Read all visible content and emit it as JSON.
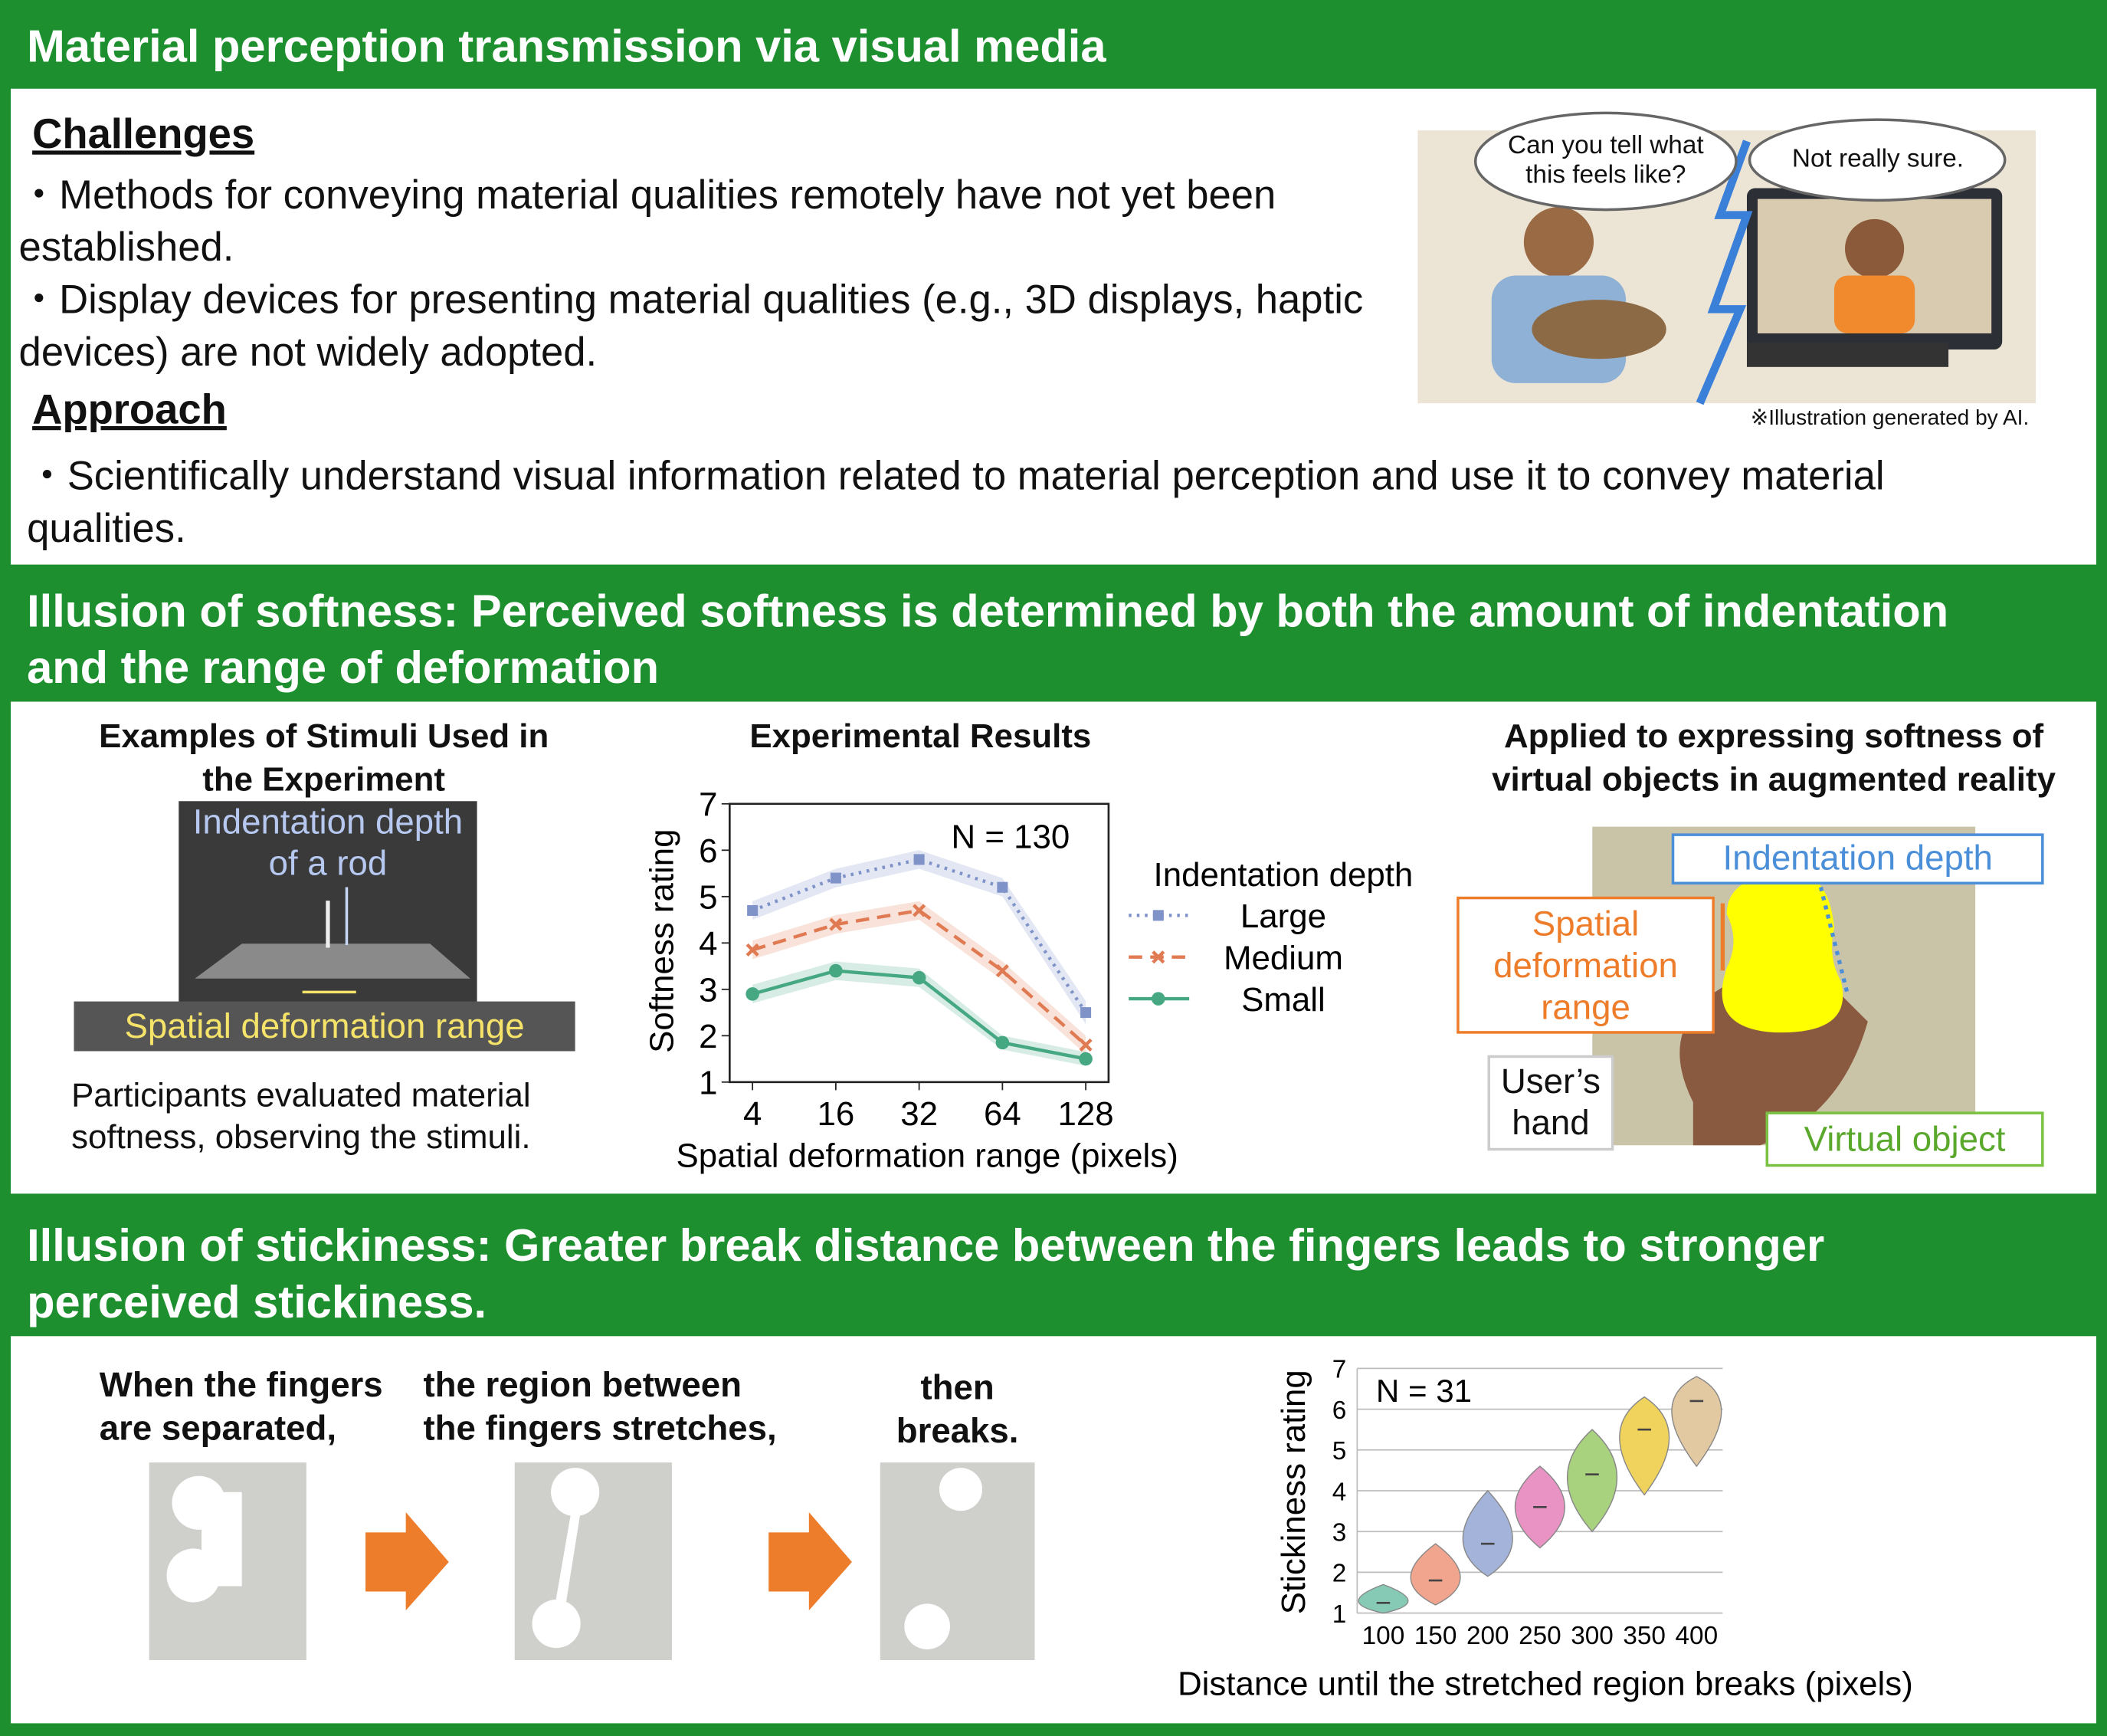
{
  "header": {
    "title": "Material perception transmission via visual media"
  },
  "challenges": {
    "heading": "Challenges",
    "items": [
      "・Methods for conveying material qualities remotely have not yet been established.",
      "・Display devices for presenting material qualities (e.g., 3D displays, haptic devices) are not widely adopted."
    ]
  },
  "approach": {
    "heading": "Approach",
    "items": [
      "・Scientifically understand visual information related to material perception and use it to convey material qualities."
    ]
  },
  "illustration": {
    "speech": [
      "Can you tell what this feels like?",
      "Not really sure."
    ],
    "caption": "※Illustration generated by AI."
  },
  "softness": {
    "title": "Illusion of softness: Perceived softness is determined by both the amount of indentation and the range of deformation",
    "stimuli": {
      "title": "Examples of Stimuli Used in the Experiment",
      "rod_label": "Indentation depth of a rod",
      "range_label": "Spatial deformation range",
      "caption": "Participants evaluated material softness, observing the stimuli."
    },
    "ar": {
      "title": "Applied to expressing softness of virtual objects in augmented reality",
      "labels": [
        "Indentation depth",
        "Spatial deformation range",
        "User’s hand",
        "Virtual object"
      ]
    }
  },
  "stickiness": {
    "title": "Illusion of stickiness: Greater break distance between the fingers leads to stronger perceived stickiness.",
    "steps": [
      "When the fingers are separated,",
      "the region between the fingers stretches,",
      "then breaks."
    ]
  },
  "chart_data": [
    {
      "type": "line",
      "title": "Experimental Results",
      "categories": [
        "4",
        "16",
        "32",
        "64",
        "128"
      ],
      "xlabel": "Spatial deformation range (pixels)",
      "ylabel": "Softness rating",
      "annotation": "N = 130",
      "legend_title": "Indentation depth",
      "ylim": [
        1,
        7
      ],
      "yticks": [
        1,
        2,
        3,
        4,
        5,
        6,
        7
      ],
      "series": [
        {
          "name": "Large",
          "color": "#7f93c9",
          "marker": "square",
          "dash": "dotted",
          "values": [
            4.7,
            5.4,
            5.8,
            5.2,
            2.5
          ],
          "errors": [
            0.2,
            0.2,
            0.2,
            0.2,
            0.25
          ]
        },
        {
          "name": "Medium",
          "color": "#e07a52",
          "marker": "x",
          "dash": "dashed",
          "values": [
            3.85,
            4.4,
            4.7,
            3.4,
            1.8
          ],
          "errors": [
            0.2,
            0.2,
            0.2,
            0.2,
            0.2
          ]
        },
        {
          "name": "Small",
          "color": "#45a882",
          "marker": "circle",
          "dash": "solid",
          "values": [
            2.9,
            3.4,
            3.25,
            1.85,
            1.5
          ],
          "errors": [
            0.2,
            0.2,
            0.2,
            0.15,
            0.15
          ]
        }
      ]
    },
    {
      "type": "violin",
      "categories": [
        "100",
        "150",
        "200",
        "250",
        "300",
        "350",
        "400"
      ],
      "xlabel": "Distance until the stretched region breaks (pixels)",
      "ylabel": "Stickiness rating",
      "annotation": "N = 31",
      "ylim": [
        1,
        7
      ],
      "yticks": [
        1,
        2,
        3,
        4,
        5,
        6,
        7
      ],
      "grid": true,
      "values": [
        1.25,
        1.8,
        2.7,
        3.6,
        4.4,
        5.5,
        6.2
      ],
      "mins": [
        1.0,
        1.2,
        1.9,
        2.6,
        3.0,
        3.9,
        4.6
      ],
      "maxs": [
        1.7,
        2.7,
        4.0,
        4.6,
        5.5,
        6.3,
        6.8
      ],
      "colors": [
        "#86c9b4",
        "#f2a58e",
        "#a3b3da",
        "#e993c4",
        "#a9d27f",
        "#f0d35d",
        "#e2c9a2"
      ]
    }
  ]
}
